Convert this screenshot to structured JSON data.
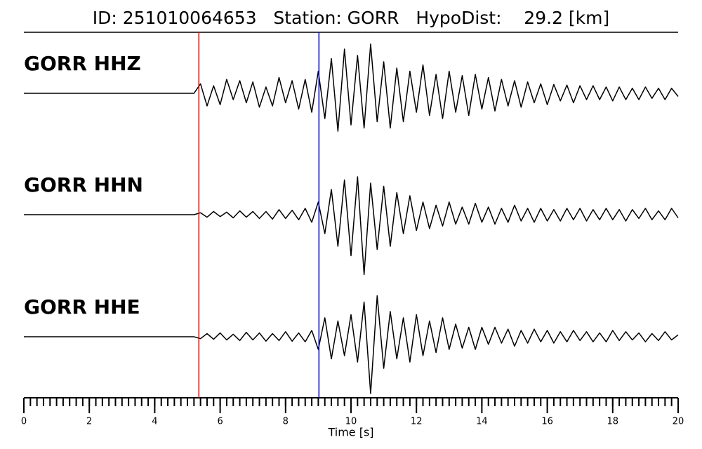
{
  "chart_data": {
    "type": "line",
    "title": "ID: 251010064653   Station: GORR   HypoDist:    29.2 [km]",
    "xlabel": "Time [s]",
    "xlim": [
      0,
      20
    ],
    "xticks": [
      0,
      2,
      4,
      6,
      8,
      10,
      12,
      14,
      16,
      18,
      20
    ],
    "ylim": [
      -1,
      1
    ],
    "label_color": "#4a9a0a",
    "line_color": "#000000",
    "x": [
      0,
      0.2,
      0.4,
      0.6,
      0.8,
      1,
      1.2,
      1.4,
      1.6,
      1.8,
      2,
      2.2,
      2.4,
      2.6,
      2.8,
      3,
      3.2,
      3.4,
      3.6,
      3.8,
      4,
      4.2,
      4.4,
      4.6,
      4.8,
      5,
      5.2,
      5.4,
      5.6,
      5.8,
      6,
      6.2,
      6.4,
      6.6,
      6.8,
      7,
      7.2,
      7.4,
      7.6,
      7.8,
      8,
      8.2,
      8.4,
      8.6,
      8.8,
      9,
      9.2,
      9.4,
      9.6,
      9.8,
      10,
      10.2,
      10.4,
      10.6,
      10.8,
      11,
      11.2,
      11.4,
      11.6,
      11.8,
      12,
      12.2,
      12.4,
      12.6,
      12.8,
      13,
      13.2,
      13.4,
      13.6,
      13.8,
      14,
      14.2,
      14.4,
      14.6,
      14.8,
      15,
      15.2,
      15.4,
      15.6,
      15.8,
      16,
      16.2,
      16.4,
      16.6,
      16.8,
      17,
      17.2,
      17.4,
      17.6,
      17.8,
      18,
      18.2,
      18.4,
      18.6,
      18.8,
      19,
      19.2,
      19.4,
      19.6,
      19.8,
      20
    ],
    "series": [
      {
        "name": "GORR HHZ",
        "values": [
          0,
          0,
          0,
          0,
          0,
          0,
          0,
          0,
          0,
          0,
          0,
          0,
          0,
          0,
          0,
          0,
          0,
          0,
          0,
          0,
          0,
          0,
          0,
          0,
          0,
          0,
          0,
          0.15,
          -0.2,
          0.12,
          -0.18,
          0.22,
          -0.1,
          0.2,
          -0.15,
          0.18,
          -0.22,
          0.1,
          -0.2,
          0.25,
          -0.15,
          0.2,
          -0.25,
          0.22,
          -0.3,
          0.35,
          -0.4,
          0.55,
          -0.6,
          0.7,
          -0.5,
          0.6,
          -0.55,
          0.78,
          -0.45,
          0.5,
          -0.55,
          0.4,
          -0.45,
          0.35,
          -0.3,
          0.45,
          -0.35,
          0.3,
          -0.4,
          0.35,
          -0.3,
          0.28,
          -0.35,
          0.3,
          -0.25,
          0.25,
          -0.28,
          0.22,
          -0.2,
          0.2,
          -0.22,
          0.18,
          -0.15,
          0.15,
          -0.18,
          0.14,
          -0.12,
          0.13,
          -0.15,
          0.12,
          -0.1,
          0.12,
          -0.1,
          0.1,
          -0.12,
          0.1,
          -0.1,
          0.08,
          -0.1,
          0.1,
          -0.08,
          0.08,
          -0.1,
          0.08,
          -0.05
        ]
      },
      {
        "name": "GORR HHN",
        "values": [
          0,
          0,
          0,
          0,
          0,
          0,
          0,
          0,
          0,
          0,
          0,
          0,
          0,
          0,
          0,
          0,
          0,
          0,
          0,
          0,
          0,
          0,
          0,
          0,
          0,
          0,
          0,
          0.03,
          -0.04,
          0.05,
          -0.03,
          0.04,
          -0.05,
          0.06,
          -0.04,
          0.05,
          -0.06,
          0.05,
          -0.07,
          0.08,
          -0.06,
          0.07,
          -0.08,
          0.1,
          -0.12,
          0.2,
          -0.3,
          0.4,
          -0.5,
          0.55,
          -0.65,
          0.6,
          -0.95,
          0.5,
          -0.55,
          0.45,
          -0.5,
          0.35,
          -0.3,
          0.3,
          -0.25,
          0.2,
          -0.22,
          0.15,
          -0.18,
          0.2,
          -0.15,
          0.12,
          -0.15,
          0.18,
          -0.12,
          0.12,
          -0.15,
          0.1,
          -0.12,
          0.15,
          -0.1,
          0.1,
          -0.12,
          0.1,
          -0.1,
          0.08,
          -0.1,
          0.1,
          -0.08,
          0.1,
          -0.1,
          0.08,
          -0.08,
          0.1,
          -0.08,
          0.08,
          -0.1,
          0.08,
          -0.06,
          0.1,
          -0.08,
          0.06,
          -0.08,
          0.1,
          -0.05
        ]
      },
      {
        "name": "GORR HHE",
        "values": [
          0,
          0,
          0,
          0,
          0,
          0,
          0,
          0,
          0,
          0,
          0,
          0,
          0,
          0,
          0,
          0,
          0,
          0,
          0,
          0,
          0,
          0,
          0,
          0,
          0,
          0,
          0,
          -0.03,
          0.05,
          -0.04,
          0.06,
          -0.05,
          0.04,
          -0.06,
          0.07,
          -0.05,
          0.06,
          -0.07,
          0.05,
          -0.06,
          0.08,
          -0.07,
          0.06,
          -0.08,
          0.1,
          -0.2,
          0.3,
          -0.35,
          0.25,
          -0.3,
          0.35,
          -0.4,
          0.55,
          -0.9,
          0.65,
          -0.5,
          0.4,
          -0.35,
          0.3,
          -0.4,
          0.35,
          -0.3,
          0.25,
          -0.25,
          0.3,
          -0.2,
          0.2,
          -0.18,
          0.15,
          -0.2,
          0.15,
          -0.12,
          0.15,
          -0.1,
          0.12,
          -0.15,
          0.1,
          -0.1,
          0.12,
          -0.08,
          0.1,
          -0.1,
          0.08,
          -0.08,
          0.1,
          -0.06,
          0.08,
          -0.08,
          0.06,
          -0.08,
          0.1,
          -0.06,
          0.08,
          -0.05,
          0.06,
          -0.08,
          0.05,
          -0.06,
          0.08,
          -0.05,
          0.03
        ]
      }
    ],
    "picks": [
      {
        "x": 5.35,
        "color": "#e00000"
      },
      {
        "x": 9.02,
        "color": "#0000cc"
      }
    ]
  }
}
